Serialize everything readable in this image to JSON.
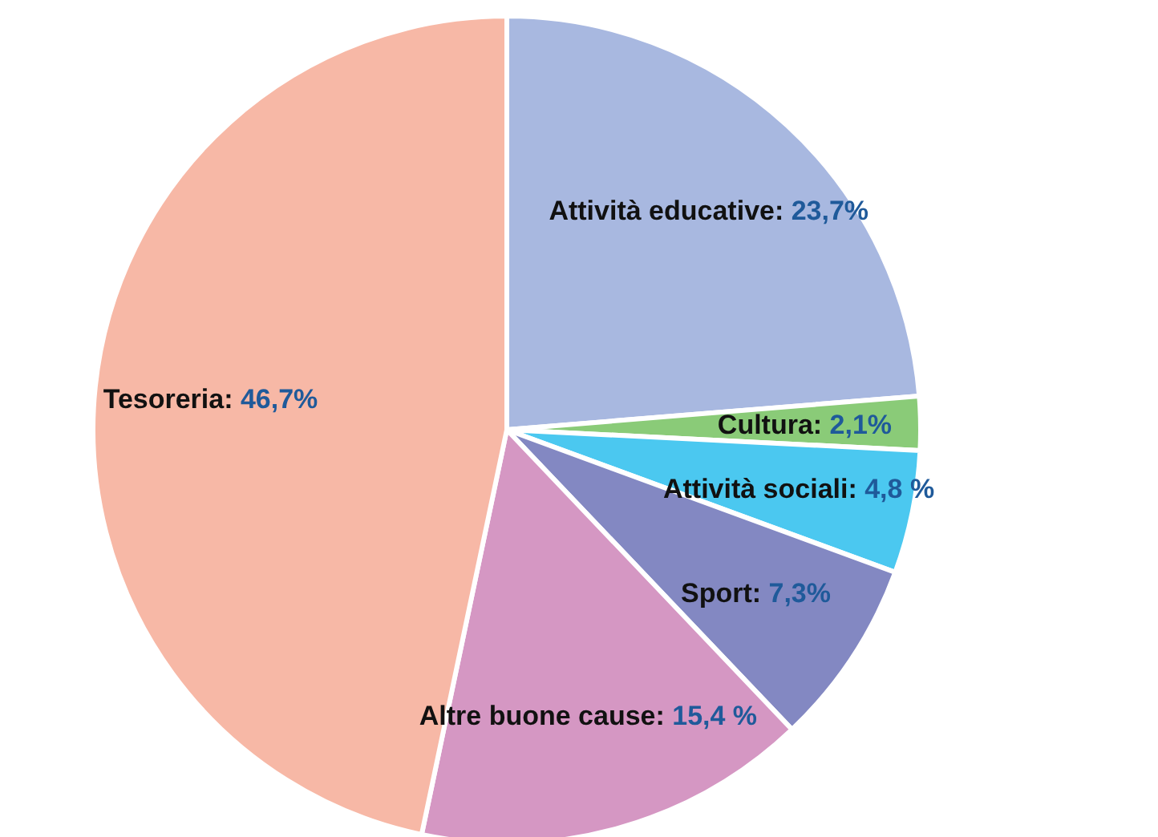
{
  "chart_data": {
    "type": "pie",
    "categories": [
      "Attività educative",
      "Cultura",
      "Attività sociali",
      "Sport",
      "Altre buone cause",
      "Tesoreria"
    ],
    "values": [
      23.7,
      2.1,
      4.8,
      7.3,
      15.4,
      46.7
    ],
    "value_labels": [
      ": 23,7%",
      ": 2,1%",
      ": 4,8 %",
      ": 7,3%",
      ": 15,4 %",
      ": 46,7%"
    ],
    "colors": [
      "#a8b8e0",
      "#8acb78",
      "#4bc8f0",
      "#8388c2",
      "#d597c3",
      "#f7b8a6"
    ],
    "legend": false
  }
}
